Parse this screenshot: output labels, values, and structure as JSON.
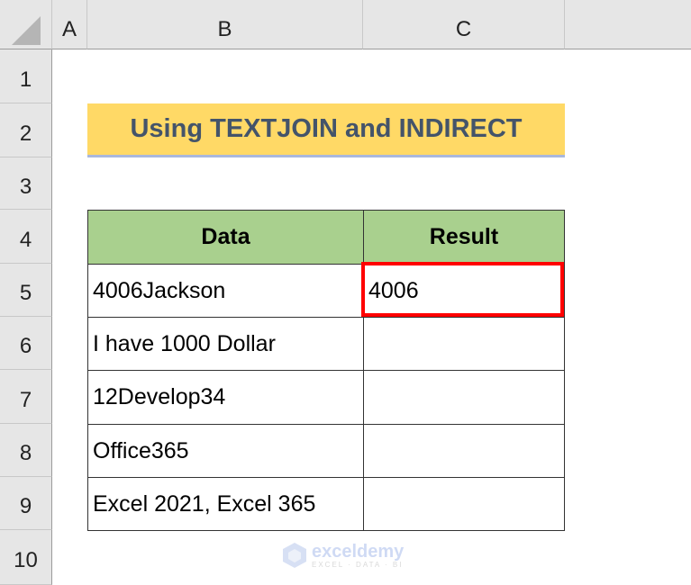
{
  "columns": [
    "A",
    "B",
    "C"
  ],
  "rows": [
    "1",
    "2",
    "3",
    "4",
    "5",
    "6",
    "7",
    "8",
    "9",
    "10"
  ],
  "title": "Using TEXTJOIN and INDIRECT",
  "table": {
    "headers": [
      "Data",
      "Result"
    ],
    "data": [
      [
        "4006Jackson",
        "4006"
      ],
      [
        "I have 1000 Dollar",
        ""
      ],
      [
        "12Develop34",
        ""
      ],
      [
        "Office365",
        ""
      ],
      [
        "Excel 2021, Excel 365",
        ""
      ]
    ]
  },
  "colors": {
    "title_bg": "#ffd966",
    "title_text": "#44546a",
    "header_bg": "#a9d08e",
    "selection": "#ff0000"
  },
  "watermark": {
    "brand": "exceldemy",
    "tagline": "EXCEL · DATA · BI"
  }
}
